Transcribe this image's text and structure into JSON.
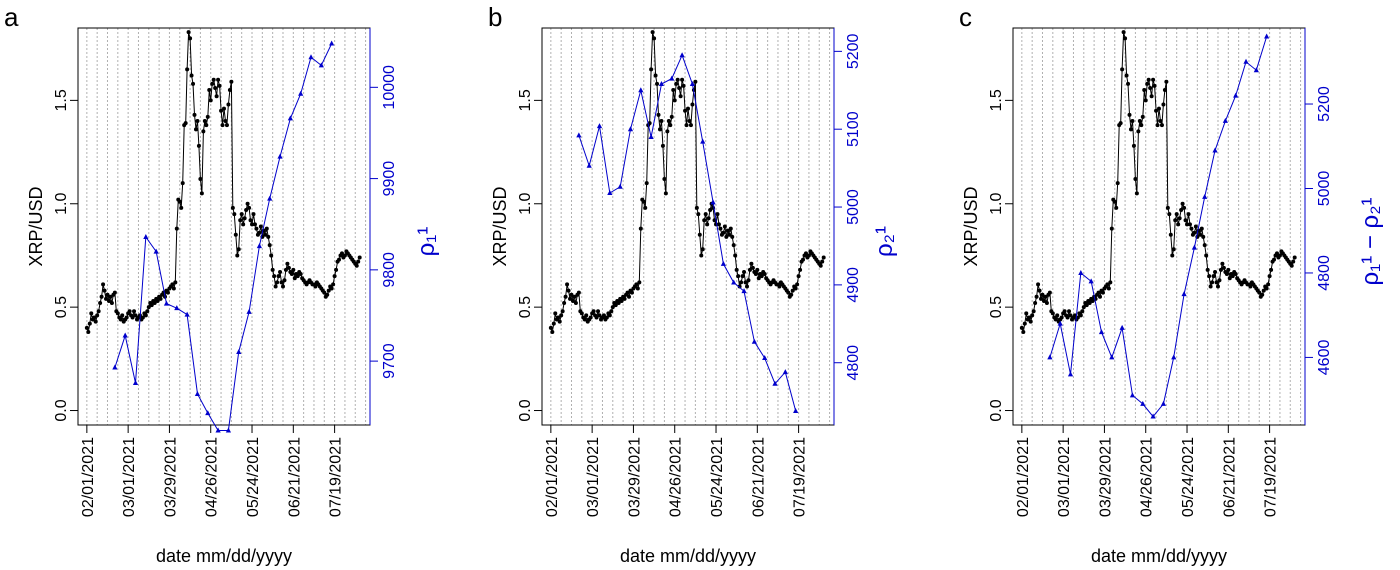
{
  "figure": {
    "x_axis_label": "date mm/dd/yyyy",
    "y_axis_label": "XRP/USD",
    "x_ticks": [
      "02/01/2021",
      "03/01/2021",
      "03/29/2021",
      "04/26/2021",
      "05/24/2021",
      "06/21/2021",
      "07/19/2021"
    ],
    "left_y_ticks": [
      "0.0",
      "0.5",
      "1.0",
      "1.5"
    ],
    "colors": {
      "price": "#000000",
      "rho": "#0000cc",
      "grid": "#b0b0b0"
    }
  },
  "chart_data": [
    {
      "type": "line",
      "panel": "a",
      "ylabel_left": "XRP/USD",
      "ylabel_right": "ρ₁¹",
      "xlabel": "date mm/dd/yyyy",
      "x_unit": "days since 02/01/2021",
      "ylim_left": [
        -0.07,
        1.85
      ],
      "ylim_right": [
        9630,
        10065
      ],
      "right_ticks": [
        9700,
        9800,
        9900,
        10000
      ],
      "series": [
        {
          "name": "XRP/USD",
          "color": "#000000",
          "x": [
            0,
            1,
            2,
            3,
            4,
            5,
            6,
            7,
            8,
            9,
            10,
            11,
            12,
            13,
            14,
            15,
            16,
            17,
            18,
            19,
            20,
            21,
            22,
            23,
            24,
            25,
            26,
            27,
            28,
            29,
            30,
            31,
            32,
            33,
            34,
            35,
            36,
            37,
            38,
            39,
            40,
            41,
            42,
            43,
            44,
            45,
            46,
            47,
            48,
            49,
            50,
            51,
            52,
            53,
            54,
            55,
            56,
            57,
            58,
            59,
            60,
            61,
            62,
            63,
            64,
            65,
            66,
            67,
            68,
            69,
            70,
            71,
            72,
            73,
            74,
            75,
            76,
            77,
            78,
            79,
            80,
            81,
            82,
            83,
            84,
            85,
            86,
            87,
            88,
            89,
            90,
            91,
            92,
            93,
            94,
            95,
            96,
            97,
            98,
            99,
            100,
            101,
            102,
            103,
            104,
            105,
            106,
            107,
            108,
            109,
            110,
            111,
            112,
            113,
            114,
            115,
            116,
            117,
            118,
            119,
            120,
            121,
            122,
            123,
            124,
            125,
            126,
            127,
            128,
            129,
            130,
            131,
            132,
            133,
            134,
            135,
            136,
            137,
            138,
            139,
            140,
            141,
            142,
            143,
            144,
            145,
            146,
            147,
            148,
            149,
            150,
            151,
            152,
            153,
            154,
            155,
            156,
            157,
            158,
            159,
            160,
            161,
            162,
            163,
            164,
            165,
            166,
            167,
            168,
            169,
            170,
            171,
            172,
            173,
            174,
            175,
            176,
            177,
            178,
            179,
            180,
            181,
            182,
            183,
            184,
            185
          ],
          "values": [
            0.4,
            0.38,
            0.42,
            0.47,
            0.44,
            0.45,
            0.43,
            0.46,
            0.48,
            0.52,
            0.55,
            0.61,
            0.58,
            0.54,
            0.56,
            0.53,
            0.55,
            0.52,
            0.56,
            0.57,
            0.48,
            0.47,
            0.45,
            0.44,
            0.46,
            0.43,
            0.44,
            0.45,
            0.47,
            0.48,
            0.46,
            0.45,
            0.48,
            0.46,
            0.44,
            0.45,
            0.46,
            0.44,
            0.45,
            0.47,
            0.46,
            0.48,
            0.5,
            0.52,
            0.51,
            0.53,
            0.52,
            0.54,
            0.53,
            0.55,
            0.54,
            0.56,
            0.57,
            0.55,
            0.58,
            0.57,
            0.59,
            0.6,
            0.61,
            0.59,
            0.62,
            0.88,
            1.02,
            1.01,
            0.98,
            1.1,
            1.38,
            1.39,
            1.65,
            1.83,
            1.8,
            1.62,
            1.58,
            1.43,
            1.36,
            1.4,
            1.28,
            1.12,
            1.05,
            1.35,
            1.4,
            1.38,
            1.42,
            1.55,
            1.5,
            1.58,
            1.6,
            1.56,
            1.52,
            1.6,
            1.57,
            1.45,
            1.38,
            1.46,
            1.4,
            1.38,
            1.48,
            1.55,
            1.59,
            0.98,
            0.95,
            0.85,
            0.75,
            0.78,
            0.92,
            0.95,
            0.9,
            0.93,
            0.97,
            1.0,
            0.98,
            0.92,
            0.9,
            0.95,
            0.9,
            0.88,
            0.85,
            0.86,
            0.89,
            0.84,
            0.87,
            0.85,
            0.88,
            0.84,
            0.8,
            0.75,
            0.68,
            0.65,
            0.6,
            0.62,
            0.65,
            0.67,
            0.62,
            0.6,
            0.63,
            0.68,
            0.71,
            0.69,
            0.67,
            0.66,
            0.68,
            0.64,
            0.66,
            0.65,
            0.67,
            0.66,
            0.64,
            0.63,
            0.62,
            0.61,
            0.62,
            0.63,
            0.62,
            0.61,
            0.61,
            0.6,
            0.62,
            0.61,
            0.6,
            0.59,
            0.58,
            0.57,
            0.55,
            0.56,
            0.58,
            0.6,
            0.59,
            0.61,
            0.65,
            0.68,
            0.72,
            0.73,
            0.75,
            0.76,
            0.74,
            0.75,
            0.77,
            0.76,
            0.75,
            0.74,
            0.73,
            0.72,
            0.71,
            0.7,
            0.72,
            0.74
          ]
        },
        {
          "name": "ρ₁¹",
          "color": "#0000cc",
          "x": [
            19,
            26,
            33,
            40,
            47,
            54,
            61,
            68,
            75,
            82,
            89,
            96,
            103,
            110,
            117,
            124,
            131,
            138,
            145,
            152,
            159,
            166
          ],
          "values": [
            9693,
            9728,
            9676,
            9836,
            9820,
            9763,
            9758,
            9751,
            9664,
            9643,
            9624,
            9624,
            9710,
            9754,
            9826,
            9878,
            9924,
            9966,
            9993,
            10033,
            10024,
            10048
          ]
        }
      ]
    },
    {
      "type": "line",
      "panel": "b",
      "ylabel_left": "XRP/USD",
      "ylabel_right": "ρ₂¹",
      "xlabel": "date mm/dd/yyyy",
      "x_unit": "days since 02/01/2021",
      "ylim_left": [
        -0.07,
        1.85
      ],
      "ylim_right": [
        4720,
        5230
      ],
      "right_ticks": [
        4800,
        4900,
        5000,
        5100,
        5200
      ],
      "series": [
        {
          "name": "XRP/USD",
          "color": "#000000",
          "x": "same as panel a",
          "values": "same as panel a"
        },
        {
          "name": "ρ₂¹",
          "color": "#0000cc",
          "x": [
            19,
            26,
            33,
            40,
            47,
            54,
            61,
            68,
            75,
            82,
            89,
            96,
            103,
            110,
            117,
            124,
            131,
            138,
            145,
            152,
            159,
            166
          ],
          "values": [
            5092,
            5053,
            5104,
            5018,
            5026,
            5100,
            5150,
            5090,
            5158,
            5165,
            5195,
            5158,
            5084,
            5006,
            4927,
            4903,
            4892,
            4827,
            4806,
            4773,
            4788,
            4738
          ]
        }
      ]
    },
    {
      "type": "line",
      "panel": "c",
      "ylabel_left": "XRP/USD",
      "ylabel_right": "ρ₁¹ − ρ₂¹",
      "xlabel": "date mm/dd/yyyy",
      "x_unit": "days since 02/01/2021",
      "ylim_left": [
        -0.07,
        1.85
      ],
      "ylim_right": [
        4440,
        5380
      ],
      "right_ticks": [
        4600,
        4800,
        5000,
        5200
      ],
      "series": [
        {
          "name": "XRP/USD",
          "color": "#000000",
          "x": "same as panel a",
          "values": "same as panel a"
        },
        {
          "name": "ρ₁¹ − ρ₂¹",
          "color": "#0000cc",
          "x": [
            19,
            26,
            33,
            40,
            47,
            54,
            61,
            68,
            75,
            82,
            89,
            96,
            103,
            110,
            117,
            124,
            131,
            138,
            145,
            152,
            159,
            166
          ],
          "values": [
            4600,
            4680,
            4560,
            4800,
            4780,
            4660,
            4600,
            4670,
            4510,
            4490,
            4460,
            4490,
            4600,
            4750,
            4860,
            4980,
            5090,
            5160,
            5220,
            5300,
            5280,
            5360
          ]
        }
      ]
    }
  ]
}
